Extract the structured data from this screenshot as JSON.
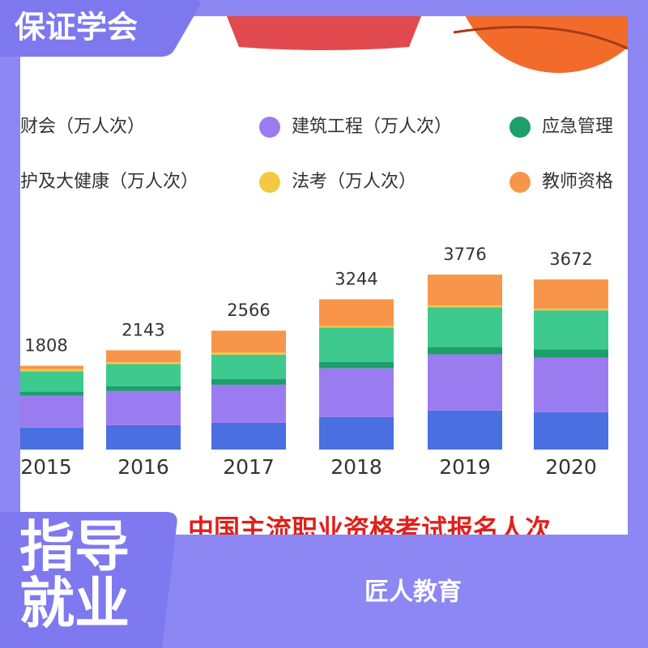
{
  "badge": "保证学会",
  "footer": {
    "big": [
      "指导",
      "就业"
    ],
    "brand": "匠人教育"
  },
  "chart_data": {
    "type": "stacked-bar",
    "title": "中国主流职业资格考试报名人次",
    "categories": [
      "2015",
      "2016",
      "2017",
      "2018",
      "2019",
      "2020"
    ],
    "totals": [
      1808,
      2143,
      2566,
      3244,
      3776,
      3672
    ],
    "series": [
      {
        "name": "财会（万人次）",
        "color": "#4a6fe0",
        "values": [
          474,
          527,
          580,
          703,
          843,
          808
        ]
      },
      {
        "name": "建筑工程（万人次）",
        "color": "#9b7cf0",
        "values": [
          687,
          738,
          820,
          1050,
          1212,
          1177
        ]
      },
      {
        "name": "应急管理",
        "color": "#1e9e6a",
        "values": [
          88,
          105,
          120,
          140,
          158,
          176
        ]
      },
      {
        "name": "护及大健康（万人次）",
        "color": "#3ec98f",
        "values": [
          439,
          474,
          527,
          740,
          860,
          843
        ]
      },
      {
        "name": "法考（万人次）",
        "color": "#f5c842",
        "values": [
          50,
          40,
          45,
          35,
          35,
          35
        ]
      },
      {
        "name": "教师资格",
        "color": "#f7964a",
        "values": [
          70,
          259,
          474,
          576,
          668,
          633
        ]
      }
    ]
  }
}
